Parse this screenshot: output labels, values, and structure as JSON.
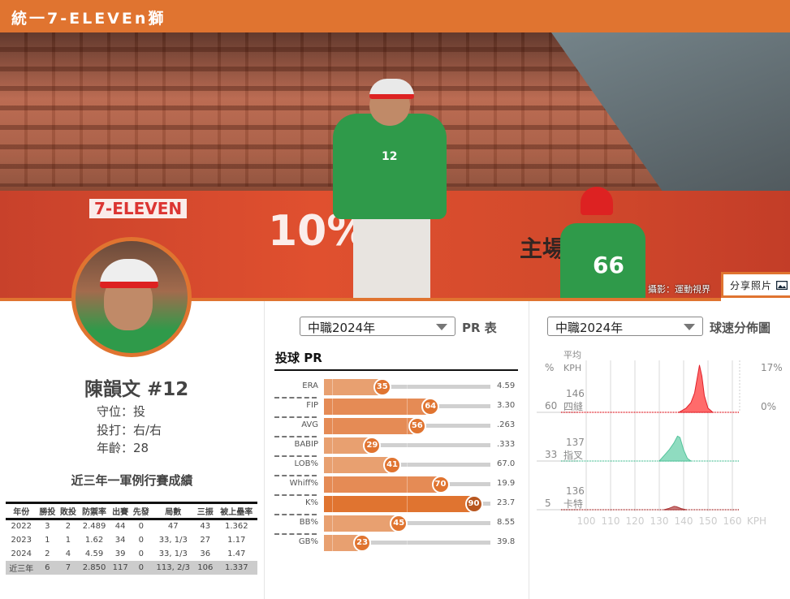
{
  "header": {
    "team": "統一7-ELEVEn獅"
  },
  "photo": {
    "credit": "攝影：運動視界",
    "share_label": "分享照片",
    "share_icon": "image-icon",
    "delete_icon": "trash-icon",
    "banner_texts": [
      "7-ELEVEN",
      "10%",
      "主場",
      "66",
      "12"
    ]
  },
  "player": {
    "name": "陳韻文 #12",
    "position": "守位：投",
    "bats_throws": "投打：右/右",
    "age": "年齡：28"
  },
  "stats": {
    "title": "近三年一軍例行賽成績",
    "columns": [
      "年份",
      "勝投",
      "敗投",
      "防禦率",
      "出賽",
      "先發",
      "局數",
      "三振",
      "被上壘率"
    ],
    "rows": [
      [
        "2022",
        "3",
        "2",
        "2.489",
        "44",
        "0",
        "47",
        "43",
        "1.362"
      ],
      [
        "2023",
        "1",
        "1",
        "1.62",
        "34",
        "0",
        "33, 1/3",
        "27",
        "1.17"
      ],
      [
        "2024",
        "2",
        "4",
        "4.59",
        "39",
        "0",
        "33, 1/3",
        "36",
        "1.47"
      ]
    ],
    "total": [
      "近三年",
      "6",
      "7",
      "2.850",
      "117",
      "0",
      "113, 2/3",
      "106",
      "1.337"
    ]
  },
  "pr": {
    "season": "中職2024年",
    "title": "PR 表",
    "section": "投球 PR",
    "items": [
      {
        "label": "ERA",
        "pr": 35,
        "value": "4.59"
      },
      {
        "label": "FIP",
        "pr": 64,
        "value": "3.30"
      },
      {
        "label": "AVG",
        "pr": 56,
        "value": ".263"
      },
      {
        "label": "BABIP",
        "pr": 29,
        "value": ".333"
      },
      {
        "label": "LOB%",
        "pr": 41,
        "value": "67.0"
      },
      {
        "label": "Whiff%",
        "pr": 70,
        "value": "19.9"
      },
      {
        "label": "K%",
        "pr": 90,
        "value": "23.7"
      },
      {
        "label": "BB%",
        "pr": 45,
        "value": "8.55"
      },
      {
        "label": "GB%",
        "pr": 23,
        "value": "39.8"
      }
    ],
    "colors": {
      "low": "#e8a070",
      "mid": "#e58b55",
      "high": "#e07430"
    }
  },
  "velo": {
    "season": "中職2024年",
    "title": "球速分佈圖",
    "chart_data": {
      "type": "area",
      "xlabel": "KPH",
      "xlim": [
        97,
        165
      ],
      "xticks": [
        100,
        110,
        120,
        130,
        140,
        150,
        160
      ],
      "ylim": [
        0,
        17
      ],
      "ytick_labels": [
        "17%",
        "0%"
      ],
      "col_headers": {
        "pct": "%",
        "avg": "平均",
        "kph": "KPH"
      },
      "series": [
        {
          "name": "四縫",
          "usage_pct": "60",
          "avg_kph": "146",
          "color": "#ff6b6b",
          "line": "#e0202a",
          "points": [
            [
              138,
              0
            ],
            [
              141,
              1.5
            ],
            [
              143,
              3.5
            ],
            [
              144.5,
              7
            ],
            [
              145.5,
              12
            ],
            [
              146.5,
              17
            ],
            [
              147.5,
              13
            ],
            [
              148.5,
              6
            ],
            [
              150,
              1.5
            ],
            [
              152,
              0
            ]
          ]
        },
        {
          "name": "指叉",
          "usage_pct": "33",
          "avg_kph": "137",
          "color": "#8fdcc0",
          "line": "#55c39c",
          "points": [
            [
              130,
              0
            ],
            [
              132,
              2
            ],
            [
              134,
              4
            ],
            [
              136,
              6.5
            ],
            [
              137.5,
              9
            ],
            [
              138.5,
              8.5
            ],
            [
              140,
              4
            ],
            [
              141.5,
              1
            ],
            [
              143,
              0
            ]
          ]
        },
        {
          "name": "卡特",
          "usage_pct": "5",
          "avg_kph": "136",
          "color": "#c97a7a",
          "line": "#a33",
          "points": [
            [
              132,
              0
            ],
            [
              134,
              0.5
            ],
            [
              136,
              1.2
            ],
            [
              137,
              1.1
            ],
            [
              139,
              0.4
            ],
            [
              141,
              0
            ]
          ]
        }
      ]
    }
  }
}
